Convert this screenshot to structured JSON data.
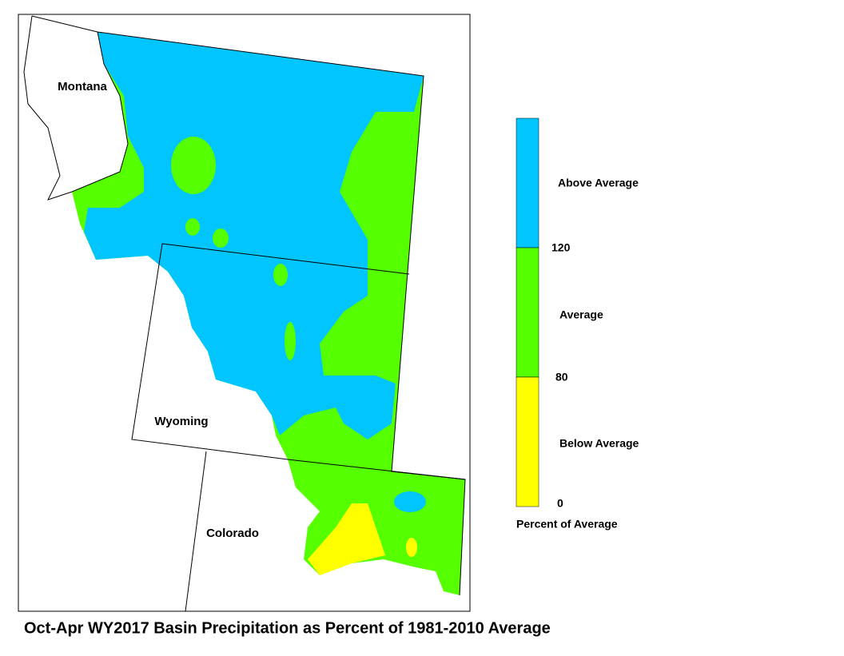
{
  "map": {
    "title": "Oct-Apr WY2017 Basin Precipitation as Percent of 1981-2010 Average",
    "states": [
      "Montana",
      "Wyoming",
      "Colorado"
    ],
    "legend": {
      "title": "Percent of Average",
      "classes": [
        {
          "label": "Above Average",
          "color": "#00c5ff"
        },
        {
          "label": "Average",
          "color": "#55ff00"
        },
        {
          "label": "Below Average",
          "color": "#ffff00"
        }
      ],
      "breaks": [
        120,
        80,
        0
      ]
    }
  }
}
